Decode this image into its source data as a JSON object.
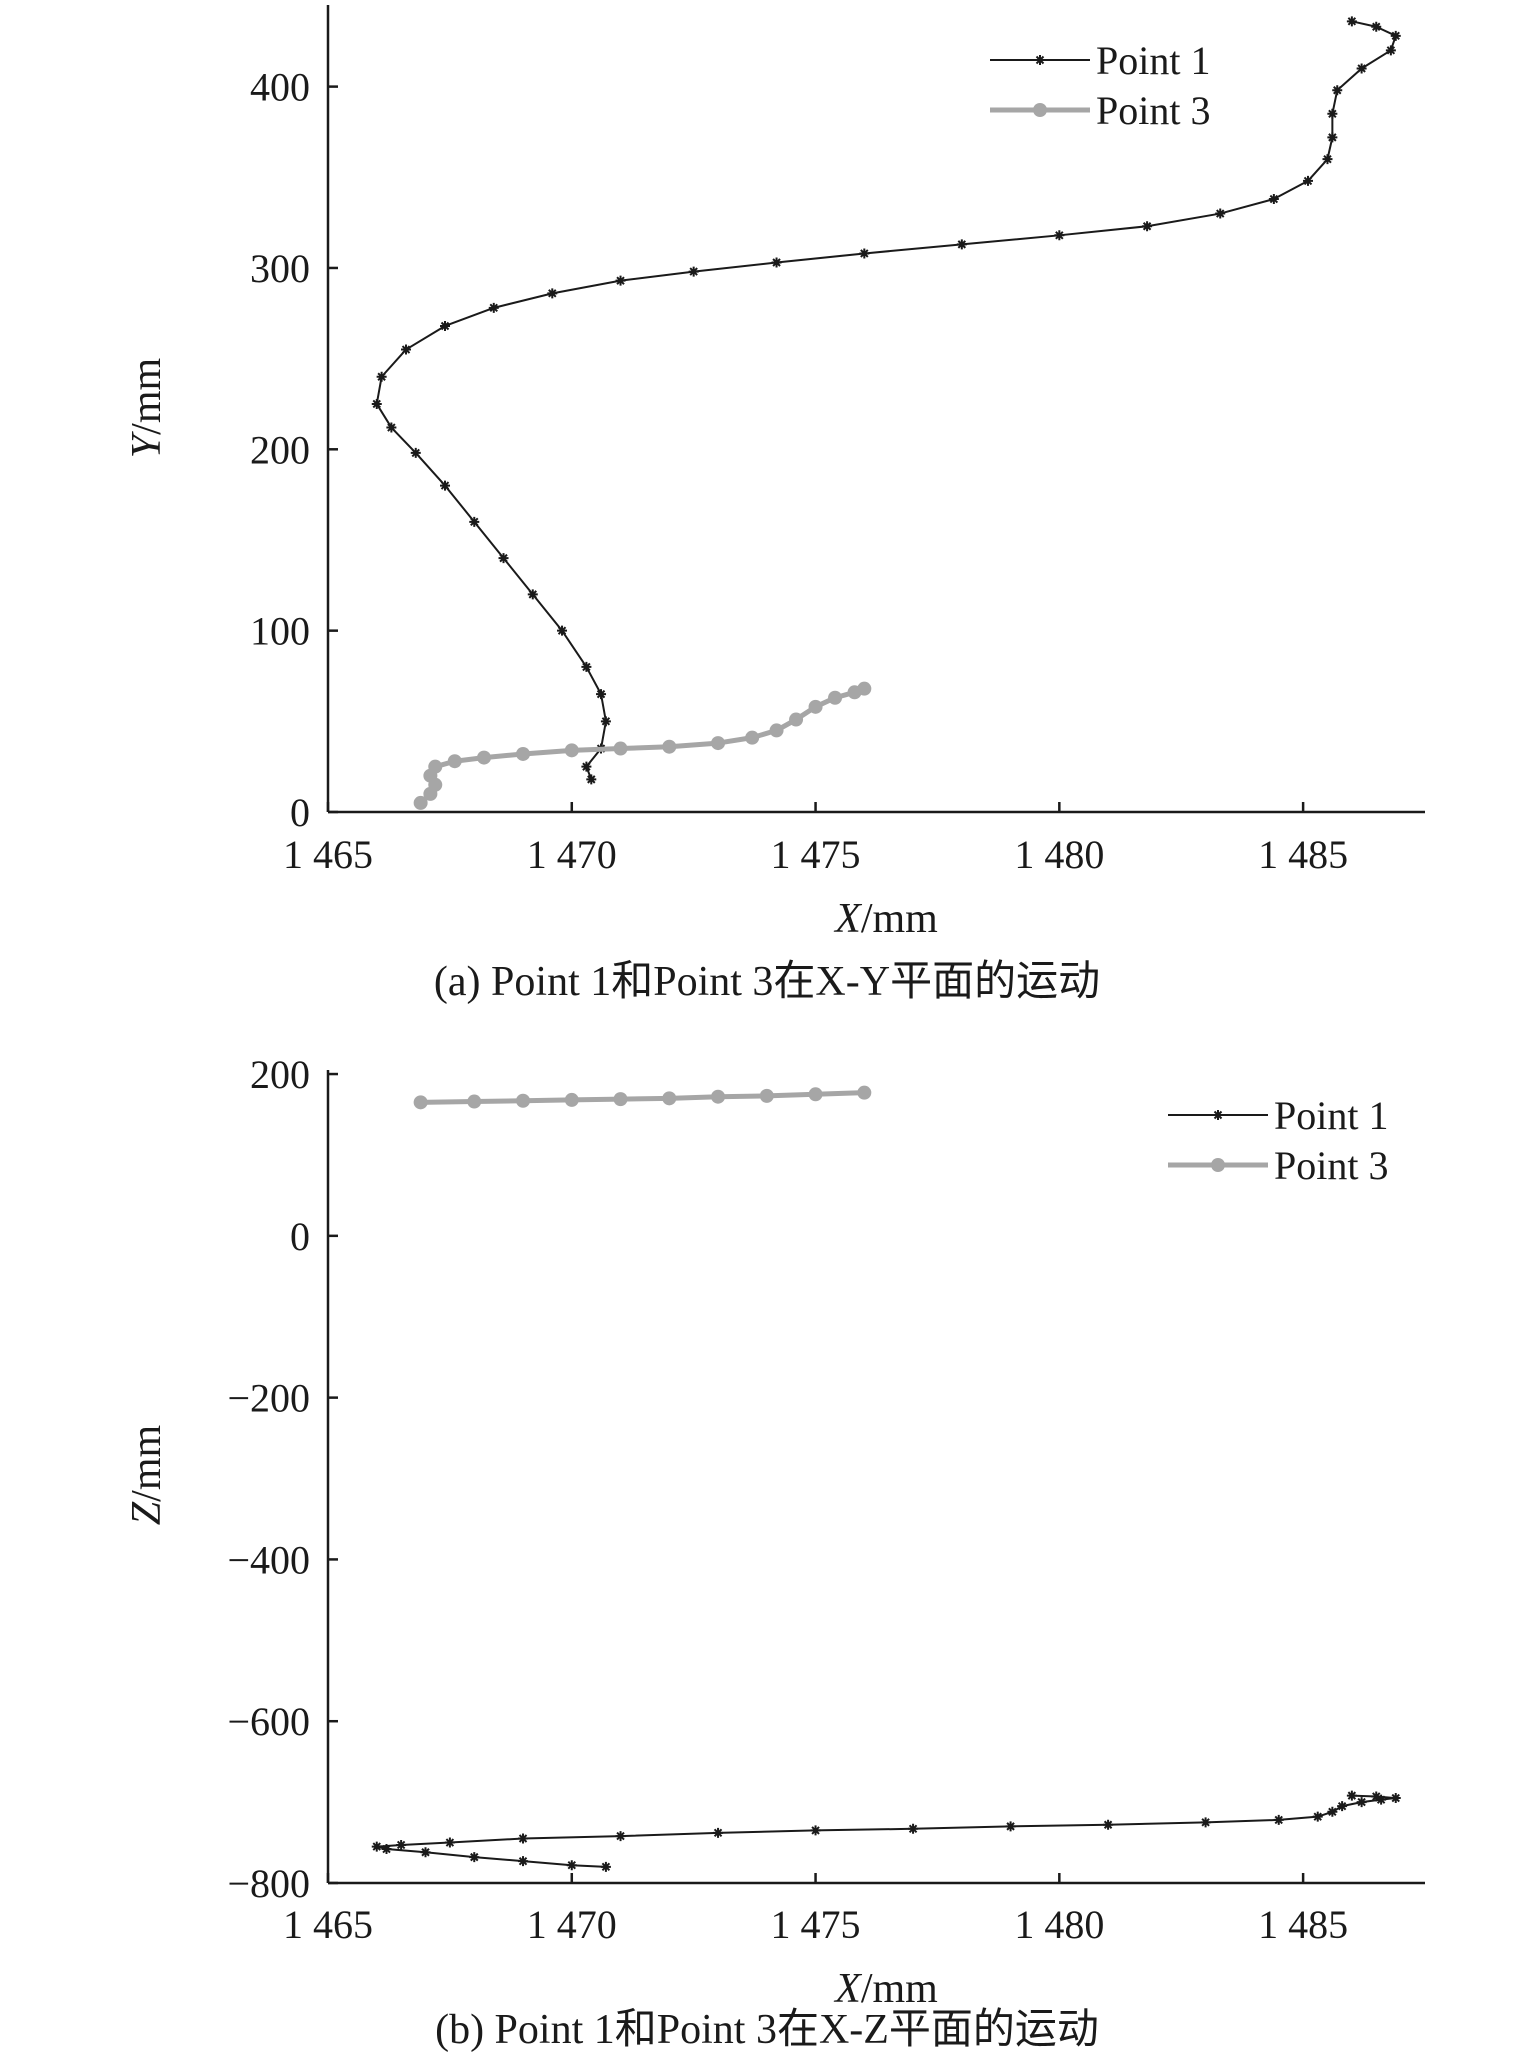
{
  "colors": {
    "point1": "#1a1a1a",
    "point3": "#a6a6a6",
    "axis": "#1a1a1a"
  },
  "chart_data": [
    {
      "type": "line",
      "caption": "(a) Point 1和Point 3在X-Y平面的运动",
      "xlabel": "X/mm",
      "ylabel": "Y/mm",
      "xlim": [
        1465,
        1487.5
      ],
      "ylim": [
        0,
        445
      ],
      "x_ticks": [
        1465,
        1470,
        1475,
        1480,
        1485
      ],
      "x_tick_labels": [
        "1 465",
        "1 470",
        "1 475",
        "1 480",
        "1 485"
      ],
      "y_ticks": [
        0,
        100,
        200,
        300,
        400
      ],
      "y_tick_labels": [
        "0",
        "100",
        "200",
        "300",
        "400"
      ],
      "legend_position": "top-right",
      "series": [
        {
          "name": "Point 1",
          "marker": "star",
          "x": [
            1470.4,
            1470.3,
            1470.6,
            1470.7,
            1470.6,
            1470.3,
            1469.8,
            1469.2,
            1468.6,
            1468.0,
            1467.4,
            1466.8,
            1466.3,
            1466.0,
            1466.1,
            1466.6,
            1467.4,
            1468.4,
            1469.6,
            1471.0,
            1472.5,
            1474.2,
            1476.0,
            1478.0,
            1480.0,
            1481.8,
            1483.3,
            1484.4,
            1485.1,
            1485.5,
            1485.6,
            1485.6,
            1485.7,
            1486.2,
            1486.8,
            1486.9,
            1486.5,
            1486.0
          ],
          "y": [
            18,
            25,
            35,
            50,
            65,
            80,
            100,
            120,
            140,
            160,
            180,
            198,
            212,
            225,
            240,
            255,
            268,
            278,
            286,
            293,
            298,
            303,
            308,
            313,
            318,
            323,
            330,
            338,
            348,
            360,
            372,
            385,
            398,
            410,
            420,
            428,
            433,
            436
          ]
        },
        {
          "name": "Point 3",
          "marker": "circle",
          "x": [
            1466.9,
            1467.1,
            1467.2,
            1467.1,
            1467.2,
            1467.6,
            1468.2,
            1469.0,
            1470.0,
            1471.0,
            1472.0,
            1473.0,
            1473.7,
            1474.2,
            1474.6,
            1475.0,
            1475.4,
            1475.8,
            1476.0
          ],
          "y": [
            5,
            10,
            15,
            20,
            25,
            28,
            30,
            32,
            34,
            35,
            36,
            38,
            41,
            45,
            51,
            58,
            63,
            66,
            68
          ]
        }
      ]
    },
    {
      "type": "line",
      "caption": "(b) Point 1和Point 3在X-Z平面的运动",
      "xlabel": "X/mm",
      "ylabel": "Z/mm",
      "xlim": [
        1465,
        1487.5
      ],
      "ylim": [
        -800,
        205
      ],
      "x_ticks": [
        1465,
        1470,
        1475,
        1480,
        1485
      ],
      "x_tick_labels": [
        "1 465",
        "1 470",
        "1 475",
        "1 480",
        "1 485"
      ],
      "y_ticks": [
        -800,
        -600,
        -400,
        -200,
        0,
        200
      ],
      "y_tick_labels": [
        "−800",
        "−600",
        "−400",
        "−200",
        "0",
        "200"
      ],
      "legend_position": "top-right",
      "series": [
        {
          "name": "Point 1",
          "marker": "star",
          "x": [
            1470.7,
            1470.0,
            1469.0,
            1468.0,
            1467.0,
            1466.2,
            1466.0,
            1466.5,
            1467.5,
            1469.0,
            1471.0,
            1473.0,
            1475.0,
            1477.0,
            1479.0,
            1481.0,
            1483.0,
            1484.5,
            1485.3,
            1485.6,
            1485.8,
            1486.2,
            1486.6,
            1486.9,
            1486.5,
            1486.0
          ],
          "y": [
            -780,
            -778,
            -773,
            -768,
            -762,
            -758,
            -755,
            -753,
            -750,
            -745,
            -742,
            -738,
            -735,
            -733,
            -730,
            -728,
            -725,
            -722,
            -718,
            -712,
            -705,
            -700,
            -697,
            -695,
            -693,
            -692
          ]
        },
        {
          "name": "Point 3",
          "marker": "circle",
          "x": [
            1466.9,
            1468.0,
            1469.0,
            1470.0,
            1471.0,
            1472.0,
            1473.0,
            1474.0,
            1475.0,
            1476.0
          ],
          "y": [
            165,
            166,
            167,
            168,
            169,
            170,
            172,
            173,
            175,
            177
          ]
        }
      ]
    }
  ]
}
